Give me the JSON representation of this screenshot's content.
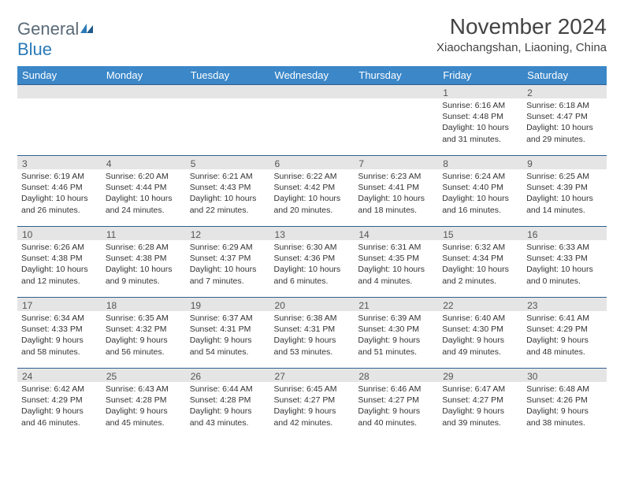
{
  "logo": {
    "word1": "General",
    "word2": "Blue"
  },
  "title": "November 2024",
  "location": "Xiaochangshan, Liaoning, China",
  "colors": {
    "header_bg": "#3b87c8",
    "header_border": "#2f5f8f",
    "daynum_bg": "#e5e5e5",
    "text": "#333333",
    "logo_gray": "#5a6a78",
    "logo_blue": "#2a7ab8"
  },
  "day_labels": [
    "Sunday",
    "Monday",
    "Tuesday",
    "Wednesday",
    "Thursday",
    "Friday",
    "Saturday"
  ],
  "weeks": [
    [
      {
        "n": "",
        "sr": "",
        "ss": "",
        "dl": ""
      },
      {
        "n": "",
        "sr": "",
        "ss": "",
        "dl": ""
      },
      {
        "n": "",
        "sr": "",
        "ss": "",
        "dl": ""
      },
      {
        "n": "",
        "sr": "",
        "ss": "",
        "dl": ""
      },
      {
        "n": "",
        "sr": "",
        "ss": "",
        "dl": ""
      },
      {
        "n": "1",
        "sr": "Sunrise: 6:16 AM",
        "ss": "Sunset: 4:48 PM",
        "dl": "Daylight: 10 hours and 31 minutes."
      },
      {
        "n": "2",
        "sr": "Sunrise: 6:18 AM",
        "ss": "Sunset: 4:47 PM",
        "dl": "Daylight: 10 hours and 29 minutes."
      }
    ],
    [
      {
        "n": "3",
        "sr": "Sunrise: 6:19 AM",
        "ss": "Sunset: 4:46 PM",
        "dl": "Daylight: 10 hours and 26 minutes."
      },
      {
        "n": "4",
        "sr": "Sunrise: 6:20 AM",
        "ss": "Sunset: 4:44 PM",
        "dl": "Daylight: 10 hours and 24 minutes."
      },
      {
        "n": "5",
        "sr": "Sunrise: 6:21 AM",
        "ss": "Sunset: 4:43 PM",
        "dl": "Daylight: 10 hours and 22 minutes."
      },
      {
        "n": "6",
        "sr": "Sunrise: 6:22 AM",
        "ss": "Sunset: 4:42 PM",
        "dl": "Daylight: 10 hours and 20 minutes."
      },
      {
        "n": "7",
        "sr": "Sunrise: 6:23 AM",
        "ss": "Sunset: 4:41 PM",
        "dl": "Daylight: 10 hours and 18 minutes."
      },
      {
        "n": "8",
        "sr": "Sunrise: 6:24 AM",
        "ss": "Sunset: 4:40 PM",
        "dl": "Daylight: 10 hours and 16 minutes."
      },
      {
        "n": "9",
        "sr": "Sunrise: 6:25 AM",
        "ss": "Sunset: 4:39 PM",
        "dl": "Daylight: 10 hours and 14 minutes."
      }
    ],
    [
      {
        "n": "10",
        "sr": "Sunrise: 6:26 AM",
        "ss": "Sunset: 4:38 PM",
        "dl": "Daylight: 10 hours and 12 minutes."
      },
      {
        "n": "11",
        "sr": "Sunrise: 6:28 AM",
        "ss": "Sunset: 4:38 PM",
        "dl": "Daylight: 10 hours and 9 minutes."
      },
      {
        "n": "12",
        "sr": "Sunrise: 6:29 AM",
        "ss": "Sunset: 4:37 PM",
        "dl": "Daylight: 10 hours and 7 minutes."
      },
      {
        "n": "13",
        "sr": "Sunrise: 6:30 AM",
        "ss": "Sunset: 4:36 PM",
        "dl": "Daylight: 10 hours and 6 minutes."
      },
      {
        "n": "14",
        "sr": "Sunrise: 6:31 AM",
        "ss": "Sunset: 4:35 PM",
        "dl": "Daylight: 10 hours and 4 minutes."
      },
      {
        "n": "15",
        "sr": "Sunrise: 6:32 AM",
        "ss": "Sunset: 4:34 PM",
        "dl": "Daylight: 10 hours and 2 minutes."
      },
      {
        "n": "16",
        "sr": "Sunrise: 6:33 AM",
        "ss": "Sunset: 4:33 PM",
        "dl": "Daylight: 10 hours and 0 minutes."
      }
    ],
    [
      {
        "n": "17",
        "sr": "Sunrise: 6:34 AM",
        "ss": "Sunset: 4:33 PM",
        "dl": "Daylight: 9 hours and 58 minutes."
      },
      {
        "n": "18",
        "sr": "Sunrise: 6:35 AM",
        "ss": "Sunset: 4:32 PM",
        "dl": "Daylight: 9 hours and 56 minutes."
      },
      {
        "n": "19",
        "sr": "Sunrise: 6:37 AM",
        "ss": "Sunset: 4:31 PM",
        "dl": "Daylight: 9 hours and 54 minutes."
      },
      {
        "n": "20",
        "sr": "Sunrise: 6:38 AM",
        "ss": "Sunset: 4:31 PM",
        "dl": "Daylight: 9 hours and 53 minutes."
      },
      {
        "n": "21",
        "sr": "Sunrise: 6:39 AM",
        "ss": "Sunset: 4:30 PM",
        "dl": "Daylight: 9 hours and 51 minutes."
      },
      {
        "n": "22",
        "sr": "Sunrise: 6:40 AM",
        "ss": "Sunset: 4:30 PM",
        "dl": "Daylight: 9 hours and 49 minutes."
      },
      {
        "n": "23",
        "sr": "Sunrise: 6:41 AM",
        "ss": "Sunset: 4:29 PM",
        "dl": "Daylight: 9 hours and 48 minutes."
      }
    ],
    [
      {
        "n": "24",
        "sr": "Sunrise: 6:42 AM",
        "ss": "Sunset: 4:29 PM",
        "dl": "Daylight: 9 hours and 46 minutes."
      },
      {
        "n": "25",
        "sr": "Sunrise: 6:43 AM",
        "ss": "Sunset: 4:28 PM",
        "dl": "Daylight: 9 hours and 45 minutes."
      },
      {
        "n": "26",
        "sr": "Sunrise: 6:44 AM",
        "ss": "Sunset: 4:28 PM",
        "dl": "Daylight: 9 hours and 43 minutes."
      },
      {
        "n": "27",
        "sr": "Sunrise: 6:45 AM",
        "ss": "Sunset: 4:27 PM",
        "dl": "Daylight: 9 hours and 42 minutes."
      },
      {
        "n": "28",
        "sr": "Sunrise: 6:46 AM",
        "ss": "Sunset: 4:27 PM",
        "dl": "Daylight: 9 hours and 40 minutes."
      },
      {
        "n": "29",
        "sr": "Sunrise: 6:47 AM",
        "ss": "Sunset: 4:27 PM",
        "dl": "Daylight: 9 hours and 39 minutes."
      },
      {
        "n": "30",
        "sr": "Sunrise: 6:48 AM",
        "ss": "Sunset: 4:26 PM",
        "dl": "Daylight: 9 hours and 38 minutes."
      }
    ]
  ]
}
